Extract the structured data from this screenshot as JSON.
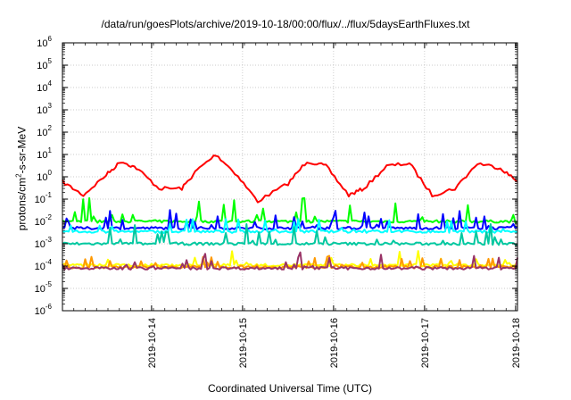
{
  "chart_data": {
    "type": "line",
    "title": "/data/run/goesPlots/archive/2019-10-18/00:00/flux/../flux/5daysEarthFluxes.txt",
    "xlabel": "Coordinated Universal Time (UTC)",
    "ylabel": {
      "prefix": "protons/cm",
      "sup": "2",
      "suffix": "-s-sr-MeV"
    },
    "y_scale": "log",
    "ylim": [
      1e-06,
      1000000.0
    ],
    "y_ticks": [
      {
        "base": "10",
        "exp": "-6"
      },
      {
        "base": "10",
        "exp": "-5"
      },
      {
        "base": "10",
        "exp": "-4"
      },
      {
        "base": "10",
        "exp": "-3"
      },
      {
        "base": "10",
        "exp": "-2"
      },
      {
        "base": "10",
        "exp": "-1"
      },
      {
        "base": "10",
        "exp": "0"
      },
      {
        "base": "10",
        "exp": "1"
      },
      {
        "base": "10",
        "exp": "2"
      },
      {
        "base": "10",
        "exp": "3"
      },
      {
        "base": "10",
        "exp": "4"
      },
      {
        "base": "10",
        "exp": "5"
      },
      {
        "base": "10",
        "exp": "6"
      }
    ],
    "xlim": [
      "2019-10-13T00:30",
      "2019-10-18T00:30"
    ],
    "x_ticks": [
      "2019-10-14",
      "2019-10-15",
      "2019-10-16",
      "2019-10-17",
      "2019-10-18"
    ],
    "grid": true,
    "series": [
      {
        "color": "#ff0000",
        "base": 0.5,
        "x": [
          "2019-10-13T00:30",
          "2019-10-13T06:00",
          "2019-10-13T12:00",
          "2019-10-13T16:00",
          "2019-10-13T20:00",
          "2019-10-14T02:00",
          "2019-10-14T08:00",
          "2019-10-14T12:00",
          "2019-10-14T17:00",
          "2019-10-14T22:00",
          "2019-10-15T04:00",
          "2019-10-15T12:00",
          "2019-10-15T17:00",
          "2019-10-15T22:00",
          "2019-10-16T04:00",
          "2019-10-16T08:00",
          "2019-10-16T14:00",
          "2019-10-16T20:00",
          "2019-10-17T02:00",
          "2019-10-17T08:00",
          "2019-10-17T14:00",
          "2019-10-17T20:00",
          "2019-10-18T00:30"
        ],
        "values": [
          0.6,
          0.15,
          1.2,
          5,
          2.5,
          0.3,
          0.3,
          2,
          10,
          1.5,
          0.08,
          0.5,
          5,
          3,
          0.15,
          0.3,
          3,
          4,
          0.15,
          0.3,
          4,
          2.5,
          0.6
        ]
      },
      {
        "color": "#00ff00",
        "base": 0.01,
        "x": [],
        "values": []
      },
      {
        "color": "#0000ff",
        "base": 0.005,
        "x": [],
        "values": []
      },
      {
        "color": "#00ffff",
        "base": 0.0035,
        "x": [],
        "values": []
      },
      {
        "color": "#00c8a0",
        "base": 0.001,
        "x": [],
        "values": []
      },
      {
        "color": "#ffff00",
        "base": 0.00011,
        "x": [],
        "values": []
      },
      {
        "color": "#ff9900",
        "base": 9e-05,
        "x": [],
        "values": []
      },
      {
        "color": "#993366",
        "base": 8e-05,
        "x": [],
        "values": []
      }
    ]
  }
}
